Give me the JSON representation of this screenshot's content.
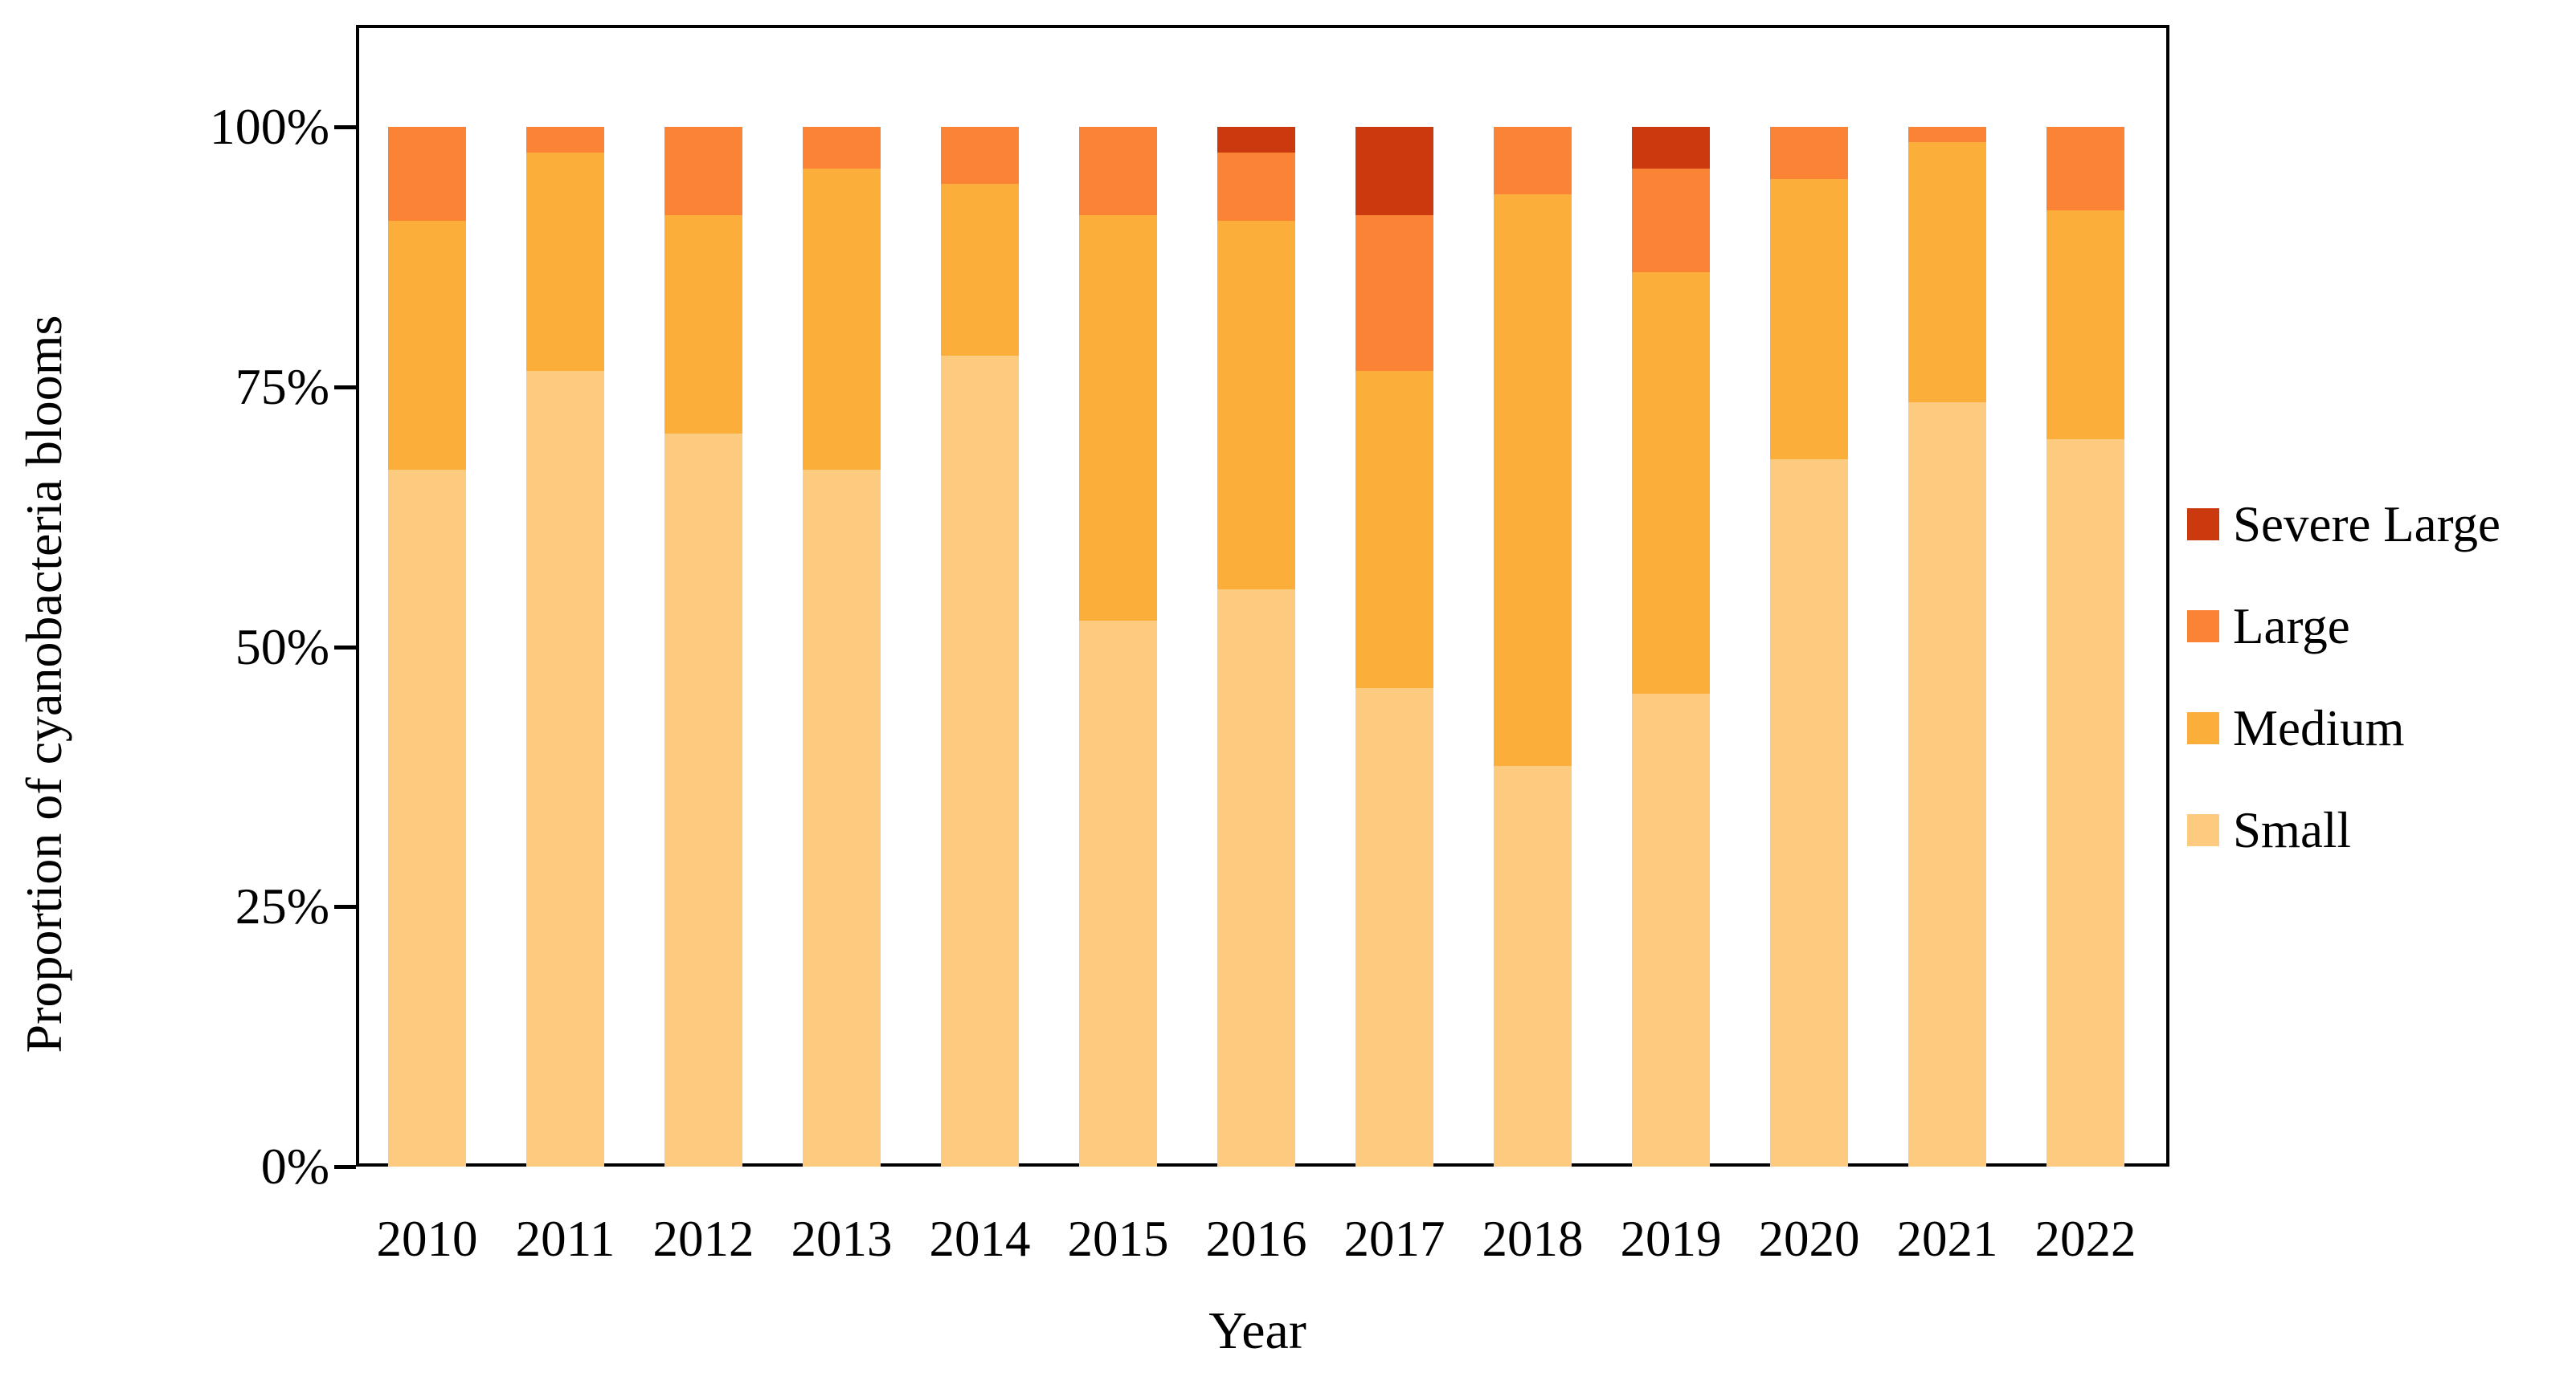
{
  "figure": {
    "background_color": "#ffffff",
    "text_color": "#000000",
    "axis_color": "#000000"
  },
  "chart_data": {
    "type": "bar",
    "stacked": true,
    "title": "",
    "xlabel": "Year",
    "ylabel": "Proportion of cyanobacteria blooms",
    "categories": [
      "2010",
      "2011",
      "2012",
      "2013",
      "2014",
      "2015",
      "2016",
      "2017",
      "2018",
      "2019",
      "2020",
      "2021",
      "2022"
    ],
    "series": [
      {
        "name": "Small",
        "color": "#FCCB7F",
        "values": [
          67,
          76.5,
          70.5,
          67,
          78,
          52.5,
          55.5,
          46,
          38.5,
          45.5,
          68,
          73.5,
          70
        ]
      },
      {
        "name": "Medium",
        "color": "#FCAE3A",
        "values": [
          24,
          21,
          21,
          29,
          16.5,
          39,
          35.5,
          30.5,
          55,
          40.5,
          27,
          25,
          22
        ]
      },
      {
        "name": "Large",
        "color": "#FB8335",
        "values": [
          9,
          2.5,
          8.5,
          4,
          5.5,
          8.5,
          6.5,
          15,
          6.5,
          10,
          5,
          1.5,
          8
        ]
      },
      {
        "name": "Severe Large",
        "color": "#CB3A0E",
        "values": [
          0,
          0,
          0,
          0,
          0,
          0,
          2.5,
          8.5,
          0,
          4,
          0,
          0,
          0
        ]
      }
    ],
    "y_axis": {
      "unit": "percent",
      "min": 0,
      "max": 100,
      "tick_labels": [
        "0%",
        "25%",
        "50%",
        "75%",
        "100%"
      ]
    },
    "grid": "off",
    "legend_position": "right",
    "legend_order": [
      "Severe Large",
      "Large",
      "Medium",
      "Small"
    ]
  }
}
